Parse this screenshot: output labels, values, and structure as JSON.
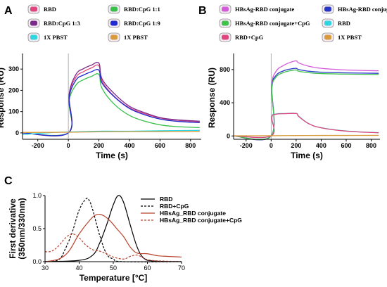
{
  "chart_data": [
    {
      "panel": "A",
      "type": "line",
      "xlabel": "Time (s)",
      "ylabel": "Response (RU)",
      "xlim": [
        -300,
        870
      ],
      "ylim": [
        -30,
        360
      ],
      "xticks": [
        -200,
        0,
        200,
        400,
        600,
        800
      ],
      "yticks": [
        0,
        100,
        200,
        300
      ],
      "legend_position": "top",
      "series": [
        {
          "name": "RBD",
          "color": "#e0457b",
          "icon": "badge-square",
          "x": [
            -300,
            0,
            5,
            50,
            100,
            150,
            200,
            220,
            300,
            400,
            500,
            600,
            700,
            860
          ],
          "y": [
            0,
            0,
            175,
            262,
            288,
            305,
            316,
            245,
            172,
            118,
            90,
            70,
            60,
            52
          ]
        },
        {
          "name": "RBD:CpG 1:1",
          "color": "#37c04a",
          "icon": "badge-square",
          "x": [
            -300,
            0,
            5,
            50,
            100,
            150,
            200,
            220,
            300,
            400,
            500,
            600,
            700,
            860
          ],
          "y": [
            0,
            0,
            150,
            225,
            250,
            265,
            275,
            210,
            135,
            82,
            55,
            38,
            30,
            25
          ]
        },
        {
          "name": "RBD:CpG 1:3",
          "color": "#7a2a8a",
          "icon": "badge-square",
          "x": [
            -300,
            0,
            5,
            50,
            100,
            150,
            200,
            220,
            300,
            400,
            500,
            600,
            700,
            860
          ],
          "y": [
            0,
            0,
            180,
            275,
            302,
            318,
            328,
            255,
            185,
            125,
            95,
            72,
            62,
            55
          ]
        },
        {
          "name": "RBD:CpG 1:9",
          "color": "#1f2bd0",
          "icon": "badge-square",
          "x": [
            -300,
            0,
            5,
            50,
            100,
            150,
            200,
            220,
            300,
            400,
            500,
            600,
            700,
            860
          ],
          "y": [
            0,
            0,
            165,
            248,
            272,
            287,
            295,
            235,
            170,
            115,
            85,
            65,
            55,
            48
          ]
        },
        {
          "name": "1X PBST",
          "color": "#2fd6e0",
          "icon": "badge-square",
          "x": [
            -300,
            -100,
            0,
            200,
            400,
            600,
            860
          ],
          "y": [
            -8,
            2,
            4,
            8,
            8,
            10,
            12
          ]
        },
        {
          "name": "1X PBST",
          "color": "#d89a3a",
          "icon": "badge-square",
          "x": [
            -300,
            0,
            200,
            400,
            600,
            860
          ],
          "y": [
            2,
            3,
            5,
            6,
            6,
            7
          ]
        }
      ]
    },
    {
      "panel": "B",
      "type": "line",
      "xlabel": "Time (s)",
      "ylabel": "Response (RU)",
      "xlim": [
        -300,
        870
      ],
      "ylim": [
        -40,
        960
      ],
      "xticks": [
        -200,
        0,
        200,
        400,
        600,
        800
      ],
      "yticks": [
        0,
        400,
        800
      ],
      "legend_position": "top",
      "series": [
        {
          "name": "HBsAg-RBD conjugate",
          "color": "#d35ad8",
          "icon": "badge-square",
          "x": [
            -300,
            0,
            5,
            40,
            100,
            150,
            200,
            220,
            300,
            400,
            600,
            860
          ],
          "y": [
            0,
            0,
            600,
            780,
            850,
            885,
            905,
            880,
            840,
            815,
            795,
            785
          ]
        },
        {
          "name": "HBsAg-RBD conjugate",
          "color": "#2836c8",
          "icon": "badge-square",
          "x": [
            -300,
            0,
            5,
            40,
            100,
            150,
            200,
            220,
            300,
            400,
            600,
            860
          ],
          "y": [
            0,
            0,
            580,
            730,
            785,
            805,
            815,
            800,
            780,
            768,
            760,
            755
          ]
        },
        {
          "name": "HBsAg-RBD conjugate+CpG",
          "color": "#3ec24a",
          "icon": "badge-square",
          "x": [
            -300,
            0,
            5,
            40,
            100,
            150,
            200,
            220,
            300,
            400,
            600,
            860
          ],
          "y": [
            0,
            0,
            560,
            710,
            765,
            785,
            795,
            780,
            762,
            752,
            745,
            740
          ]
        },
        {
          "name": "RBD",
          "color": "#2fd6e0",
          "icon": "badge-square",
          "x": [
            -300,
            0,
            5,
            40,
            100,
            200,
            220,
            300,
            400,
            600,
            860
          ],
          "y": [
            0,
            0,
            230,
            265,
            270,
            272,
            240,
            150,
            100,
            60,
            40
          ]
        },
        {
          "name": "RBD+CpG",
          "color": "#e0457b",
          "icon": "badge-square",
          "x": [
            -300,
            0,
            5,
            40,
            100,
            200,
            220,
            300,
            400,
            600,
            860
          ],
          "y": [
            0,
            0,
            225,
            262,
            268,
            270,
            235,
            148,
            98,
            58,
            38
          ]
        },
        {
          "name": "1X PBST",
          "color": "#d89a3a",
          "icon": "badge-square",
          "x": [
            -300,
            0,
            200,
            400,
            600,
            860
          ],
          "y": [
            2,
            3,
            5,
            6,
            6,
            7
          ]
        }
      ]
    },
    {
      "panel": "C",
      "type": "line",
      "xlabel": "Temperature [°C]",
      "ylabel": "First derivative (350nm/330nm)",
      "ylabel_lines": [
        "First derivative",
        "(350nm/330nm)"
      ],
      "xlim": [
        30,
        70
      ],
      "ylim": [
        0,
        1.0
      ],
      "xticks": [
        30,
        40,
        50,
        60,
        70
      ],
      "yticks": [
        0.0,
        0.5,
        1.0
      ],
      "legend_position": "top-right",
      "series": [
        {
          "name": "RBD",
          "color": "#000000",
          "dash": "solid",
          "x": [
            30,
            40,
            44,
            46,
            48,
            50,
            51.5,
            53,
            55,
            57,
            59,
            62,
            70
          ],
          "y": [
            0,
            0.02,
            0.1,
            0.28,
            0.55,
            0.86,
            1.0,
            0.9,
            0.55,
            0.22,
            0.05,
            0.01,
            0
          ]
        },
        {
          "name": "RBD+CpG",
          "color": "#000000",
          "dash": "dashed",
          "x": [
            30,
            34,
            36,
            38,
            40,
            42,
            43,
            44,
            46,
            48,
            50,
            53,
            70
          ],
          "y": [
            0,
            0.03,
            0.2,
            0.45,
            0.78,
            0.95,
            0.92,
            0.78,
            0.4,
            0.12,
            0.04,
            0,
            0
          ]
        },
        {
          "name": "HBsAg_RBD conjugate",
          "color": "#b8432d",
          "dash": "solid",
          "x": [
            30,
            34,
            37,
            40,
            43,
            45,
            47,
            49,
            51,
            53,
            55,
            57,
            60,
            63,
            66,
            70
          ],
          "y": [
            0,
            0.04,
            0.16,
            0.42,
            0.62,
            0.71,
            0.7,
            0.62,
            0.5,
            0.38,
            0.22,
            0.13,
            0.12,
            0.09,
            0.08,
            0.07
          ]
        },
        {
          "name": "HBsAg_RBD conjugate+CpG",
          "color": "#b8432d",
          "dash": "dashed",
          "x": [
            30,
            32,
            34,
            36,
            38,
            40,
            42,
            44,
            46,
            48,
            50,
            53,
            55,
            57,
            59,
            61,
            64,
            70
          ],
          "y": [
            0.15,
            0.16,
            0.24,
            0.36,
            0.42,
            0.36,
            0.25,
            0.18,
            0.16,
            0.12,
            0.07,
            0.04,
            0.08,
            0.1,
            0.05,
            0.02,
            0.01,
            0
          ]
        }
      ]
    }
  ]
}
